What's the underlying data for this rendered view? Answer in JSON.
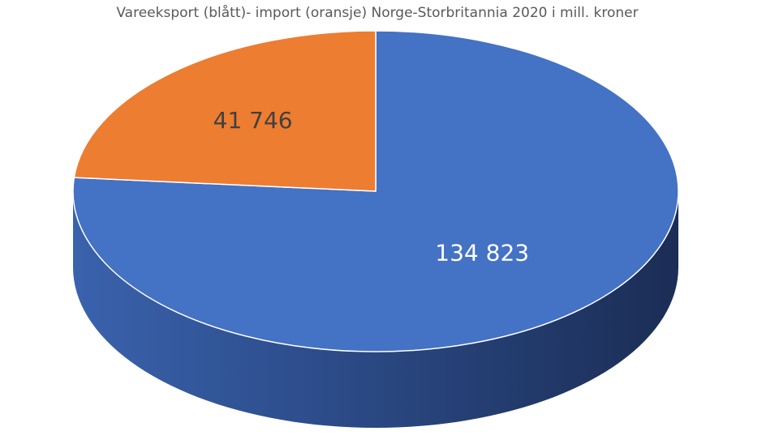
{
  "chart_data": {
    "type": "pie",
    "title": "Vareeksport (blått)- import (oransje) Norge-Storbritannia 2020 i mill. kroner",
    "slices": [
      {
        "value": 134823,
        "label": "134 823",
        "color": "#4472C4",
        "label_color": "#FFFFFF"
      },
      {
        "value": 41746,
        "label": "41 746",
        "color": "#ED7D31",
        "label_color": "#404040"
      }
    ]
  }
}
